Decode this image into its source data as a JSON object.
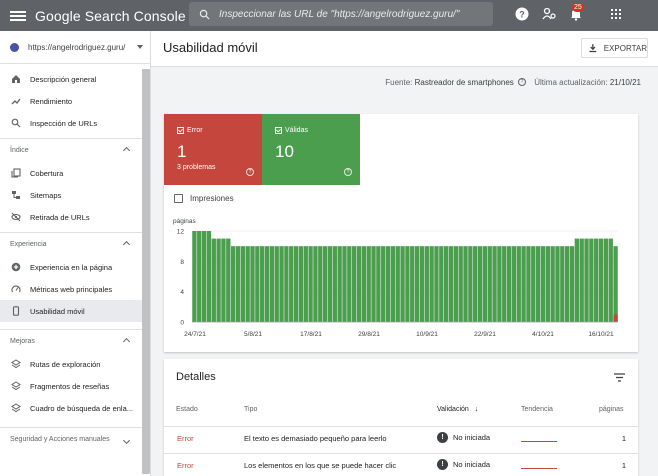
{
  "app": {
    "title": "Google Search Console"
  },
  "search": {
    "placeholder": "Inspeccionar las URL de \"https://angelrodriguez.guru/\""
  },
  "notifications": {
    "count": "25"
  },
  "property": {
    "label": "https://angelrodriguez.guru/"
  },
  "sidebar": {
    "top_items": [
      {
        "label": "Descripción general",
        "icon": "home-icon"
      },
      {
        "label": "Rendimiento",
        "icon": "trending-icon"
      },
      {
        "label": "Inspección de URLs",
        "icon": "search-icon"
      }
    ],
    "sections": {
      "indice": {
        "label": "Índice",
        "items": [
          {
            "label": "Cobertura",
            "icon": "file-copy-icon"
          },
          {
            "label": "Sitemaps",
            "icon": "sitemap-icon"
          },
          {
            "label": "Retirada de URLs",
            "icon": "eye-off-icon"
          }
        ]
      },
      "experiencia": {
        "label": "Experiencia",
        "items": [
          {
            "label": "Experiencia en la página",
            "icon": "plus-circle-icon"
          },
          {
            "label": "Métricas web principales",
            "icon": "speed-icon"
          },
          {
            "label": "Usabilidad móvil",
            "icon": "phone-icon"
          }
        ]
      },
      "mejoras": {
        "label": "Mejoras",
        "items": [
          {
            "label": "Rutas de exploración",
            "icon": "layers-icon"
          },
          {
            "label": "Fragmentos de reseñas",
            "icon": "layers-icon"
          },
          {
            "label": "Cuadro de búsqueda de enla...",
            "icon": "layers-icon"
          }
        ]
      },
      "seguridad": {
        "label": "Seguridad y Acciones manuales"
      }
    }
  },
  "header": {
    "title": "Usabilidad móvil",
    "export_label": "EXPORTAR"
  },
  "source": {
    "label": "Fuente:",
    "value": "Rastreador de smartphones",
    "updated_label": "Última actualización:",
    "updated_value": "21/10/21"
  },
  "tiles": {
    "error": {
      "label": "Error",
      "value": "1",
      "sub": "3 problemas",
      "color": "#c5463d"
    },
    "valid": {
      "label": "Válidas",
      "value": "10",
      "color": "#4c9e4f"
    }
  },
  "impressions": {
    "label": "Impresiones"
  },
  "chart_data": {
    "type": "bar",
    "ylabel": "páginas",
    "ylim": [
      0,
      12
    ],
    "yticks": [
      0,
      4,
      8,
      12
    ],
    "xtick_labels": [
      "24/7/21",
      "5/8/21",
      "17/8/21",
      "29/8/21",
      "10/9/21",
      "22/9/21",
      "4/10/21",
      "16/10/21"
    ],
    "series": [
      {
        "color": "#4c9e4f",
        "values": [
          12,
          12,
          12,
          12,
          11,
          11,
          11,
          11,
          10,
          10,
          10,
          10,
          10,
          10,
          10,
          10,
          10,
          10,
          10,
          10,
          10,
          10,
          10,
          10,
          10,
          10,
          10,
          10,
          10,
          10,
          10,
          10,
          10,
          10,
          10,
          10,
          10,
          10,
          10,
          10,
          10,
          10,
          10,
          10,
          10,
          10,
          10,
          10,
          10,
          10,
          10,
          10,
          10,
          10,
          10,
          10,
          10,
          10,
          10,
          10,
          10,
          10,
          10,
          10,
          10,
          10,
          10,
          10,
          10,
          10,
          10,
          10,
          10,
          10,
          10,
          10,
          10,
          10,
          10,
          11,
          11,
          11,
          11,
          11,
          11,
          11,
          11,
          10
        ]
      },
      {
        "color": "#c5463d",
        "values": [
          0,
          0,
          0,
          0,
          0,
          0,
          0,
          0,
          0,
          0,
          0,
          0,
          0,
          0,
          0,
          0,
          0,
          0,
          0,
          0,
          0,
          0,
          0,
          0,
          0,
          0,
          0,
          0,
          0,
          0,
          0,
          0,
          0,
          0,
          0,
          0,
          0,
          0,
          0,
          0,
          0,
          0,
          0,
          0,
          0,
          0,
          0,
          0,
          0,
          0,
          0,
          0,
          0,
          0,
          0,
          0,
          0,
          0,
          0,
          0,
          0,
          0,
          0,
          0,
          0,
          0,
          0,
          0,
          0,
          0,
          0,
          0,
          0,
          0,
          0,
          0,
          0,
          0,
          0,
          0,
          0,
          0,
          0,
          0,
          0,
          0,
          0,
          1
        ]
      }
    ]
  },
  "details": {
    "title": "Detalles",
    "columns": [
      "Estado",
      "Tipo",
      "Validación",
      "Tendencia",
      "páginas"
    ],
    "rows": [
      {
        "estado": "Error",
        "tipo": "El texto es demasiado pequeño para leerlo",
        "validacion": "No iniciada",
        "paginas": "1"
      },
      {
        "estado": "Error",
        "tipo": "Los elementos en los que se puede hacer clic",
        "validacion": "No iniciada",
        "paginas": "1"
      }
    ]
  }
}
